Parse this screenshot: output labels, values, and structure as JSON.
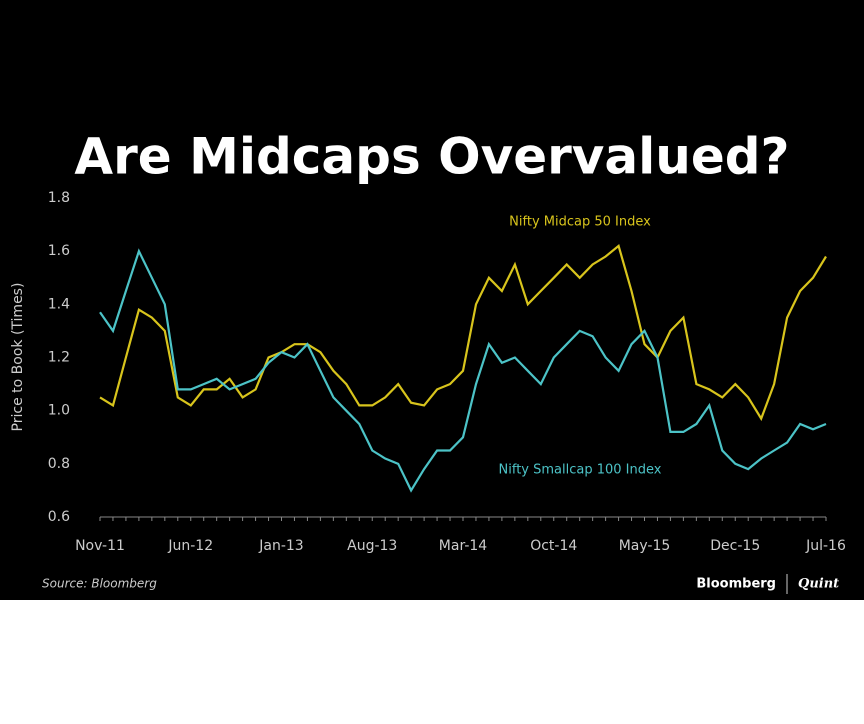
{
  "chart_data": {
    "type": "line",
    "title": "Are Midcaps Overvalued?",
    "y_label": "Price to Book (Times)",
    "source": "Source: Bloomberg",
    "brand": [
      "Bloomberg",
      "Quint"
    ],
    "categories": [
      "Nov-11",
      null,
      null,
      null,
      null,
      null,
      null,
      "Jun-12",
      null,
      null,
      null,
      null,
      null,
      null,
      "Jan-13",
      null,
      null,
      null,
      null,
      null,
      null,
      "Aug-13",
      null,
      null,
      null,
      null,
      null,
      null,
      "Mar-14",
      null,
      null,
      null,
      null,
      null,
      null,
      "Oct-14",
      null,
      null,
      null,
      null,
      null,
      null,
      "May-15",
      null,
      null,
      null,
      null,
      null,
      null,
      "Dec-15",
      null,
      null,
      null,
      null,
      null,
      null,
      "Jul-16"
    ],
    "series": [
      {
        "name": "Nifty Midcap 50 Index",
        "color": "#d8c41c",
        "values": [
          1.05,
          1.02,
          1.2,
          1.38,
          1.35,
          1.3,
          1.05,
          1.02,
          1.08,
          1.08,
          1.12,
          1.05,
          1.08,
          1.2,
          1.22,
          1.25,
          1.25,
          1.22,
          1.15,
          1.1,
          1.02,
          1.02,
          1.05,
          1.1,
          1.03,
          1.02,
          1.08,
          1.1,
          1.15,
          1.4,
          1.5,
          1.45,
          1.55,
          1.4,
          1.45,
          1.5,
          1.55,
          1.5,
          1.55,
          1.58,
          1.62,
          1.45,
          1.25,
          1.2,
          1.3,
          1.35,
          1.1,
          1.08,
          1.05,
          1.1,
          1.05,
          0.97,
          1.1,
          1.35,
          1.45,
          1.5,
          1.58
        ]
      },
      {
        "name": "Nifty Smallcap 100 Index",
        "color": "#4cc3c7",
        "values": [
          1.37,
          1.3,
          1.45,
          1.6,
          1.5,
          1.4,
          1.08,
          1.08,
          1.1,
          1.12,
          1.08,
          1.1,
          1.12,
          1.18,
          1.22,
          1.2,
          1.25,
          1.15,
          1.05,
          1.0,
          0.95,
          0.85,
          0.82,
          0.8,
          0.7,
          0.78,
          0.85,
          0.85,
          0.9,
          1.1,
          1.25,
          1.18,
          1.2,
          1.15,
          1.1,
          1.2,
          1.25,
          1.3,
          1.28,
          1.2,
          1.15,
          1.25,
          1.3,
          1.2,
          0.92,
          0.92,
          0.95,
          1.02,
          0.85,
          0.8,
          0.78,
          0.82,
          0.85,
          0.88,
          0.95,
          0.93,
          0.95
        ]
      }
    ],
    "ylim": [
      0.6,
      1.8
    ],
    "yticks": [
      0.6,
      0.8,
      {
        "value": 1,
        "label": "1.0"
      },
      1.2,
      1.4,
      1.6,
      1.8
    ]
  }
}
